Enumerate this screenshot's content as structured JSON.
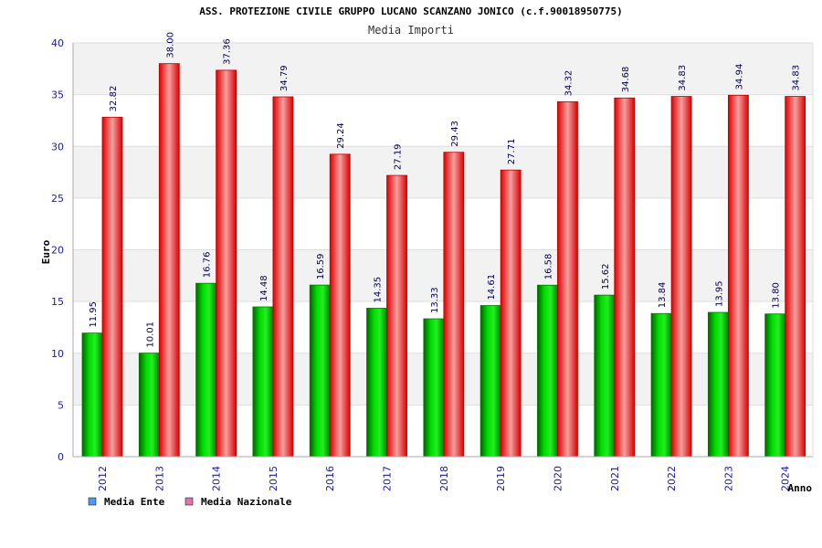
{
  "chart_data": {
    "type": "bar",
    "title": "ASS. PROTEZIONE CIVILE GRUPPO LUCANO SCANZANO JONICO (c.f.90018950775)",
    "subtitle": "Media Importi",
    "xlabel": "Anno",
    "ylabel": "Euro",
    "ylim": [
      0,
      40
    ],
    "yticks": [
      0,
      5,
      10,
      15,
      20,
      25,
      30,
      35,
      40
    ],
    "categories": [
      "2012",
      "2013",
      "2014",
      "2015",
      "2016",
      "2017",
      "2018",
      "2019",
      "2020",
      "2021",
      "2022",
      "2023",
      "2024"
    ],
    "series": [
      {
        "name": "Media Ente",
        "color": "#00cc00",
        "values": [
          11.95,
          10.01,
          16.76,
          14.48,
          16.59,
          14.35,
          13.33,
          14.61,
          16.58,
          15.62,
          13.84,
          13.95,
          13.8
        ],
        "labels": [
          "11.95",
          "10.01",
          "16.76",
          "14.48",
          "16.59",
          "14.35",
          "13.33",
          "14.61",
          "16.58",
          "15.62",
          "13.84",
          "13.95",
          "13.80"
        ]
      },
      {
        "name": "Media Nazionale",
        "color": "#ee1111",
        "values": [
          32.82,
          38.0,
          37.36,
          34.79,
          29.24,
          27.19,
          29.43,
          27.71,
          34.32,
          34.68,
          34.83,
          34.94,
          34.83
        ],
        "labels": [
          "32.82",
          "38.00",
          "37.36",
          "34.79",
          "29.24",
          "27.19",
          "29.43",
          "27.71",
          "34.32",
          "34.68",
          "34.83",
          "34.94",
          "34.83"
        ]
      }
    ],
    "legend": {
      "position": "bottom-left",
      "entries": [
        {
          "label": "Media Ente",
          "color": "#5599ee"
        },
        {
          "label": "Media Nazionale",
          "color": "#dd77aa"
        }
      ]
    },
    "grid": true
  }
}
